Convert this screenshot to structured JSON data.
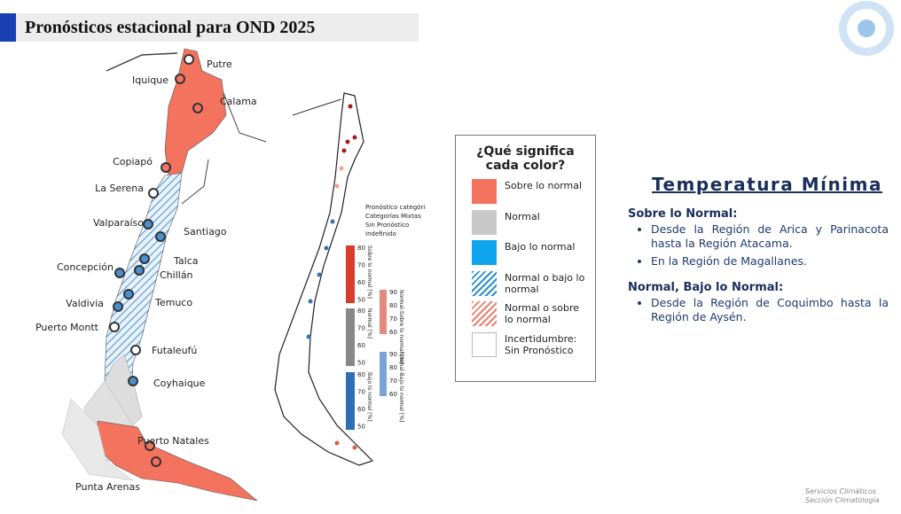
{
  "header": {
    "title": "Pronósticos estacional para OND 2025"
  },
  "map_left": {
    "cities": [
      "Putre",
      "Iquique",
      "Calama",
      "Copiapó",
      "La Serena",
      "Valparaíso",
      "Santiago",
      "Talca",
      "Concepción",
      "Chillán",
      "Valdivia",
      "Temuco",
      "Puerto Montt",
      "Futaleufú",
      "Coyhaique",
      "Puerto Natales",
      "Punta Arenas"
    ]
  },
  "map_center": {
    "legend": [
      "Pronóstico categórico",
      "Categorías Mixtas",
      "Sin Pronóstico",
      "Indefinido"
    ],
    "colorbars": [
      {
        "title": "Sobre lo normal [%]",
        "ticks": [
          80,
          70,
          60,
          50
        ]
      },
      {
        "title": "Normal [%]",
        "ticks": [
          80,
          70,
          60,
          50
        ]
      },
      {
        "title": "Bajo lo normal [%]",
        "ticks": [
          80,
          70,
          60,
          50
        ]
      },
      {
        "title": "Normal-Sobre lo normal [%]",
        "ticks": [
          90,
          80,
          70,
          60
        ]
      },
      {
        "title": "Normal-Bajo lo normal [%]",
        "ticks": [
          90,
          80,
          70,
          60
        ]
      }
    ]
  },
  "legend": {
    "title": "¿Qué significa cada color?",
    "items": [
      "Sobre lo normal",
      "Normal",
      "Bajo lo normal",
      "Normal o bajo lo normal",
      "Normal o sobre lo normal",
      "Incertidumbre: Sin Pronóstico"
    ]
  },
  "panel": {
    "title": "Temperatura Mínima",
    "sections": [
      {
        "heading": "Sobre lo Normal:",
        "bullets": [
          "Desde la Región de Arica y Parinacota hasta la Región Atacama.",
          "En la Región de Magallanes."
        ]
      },
      {
        "heading": "Normal, Bajo lo Normal:",
        "bullets": [
          "Desde la Región de Coquimbo hasta la Región de Aysén."
        ]
      }
    ]
  },
  "footer": {
    "lines": [
      "Servicios Climáticos",
      "Sección Climatología"
    ]
  }
}
